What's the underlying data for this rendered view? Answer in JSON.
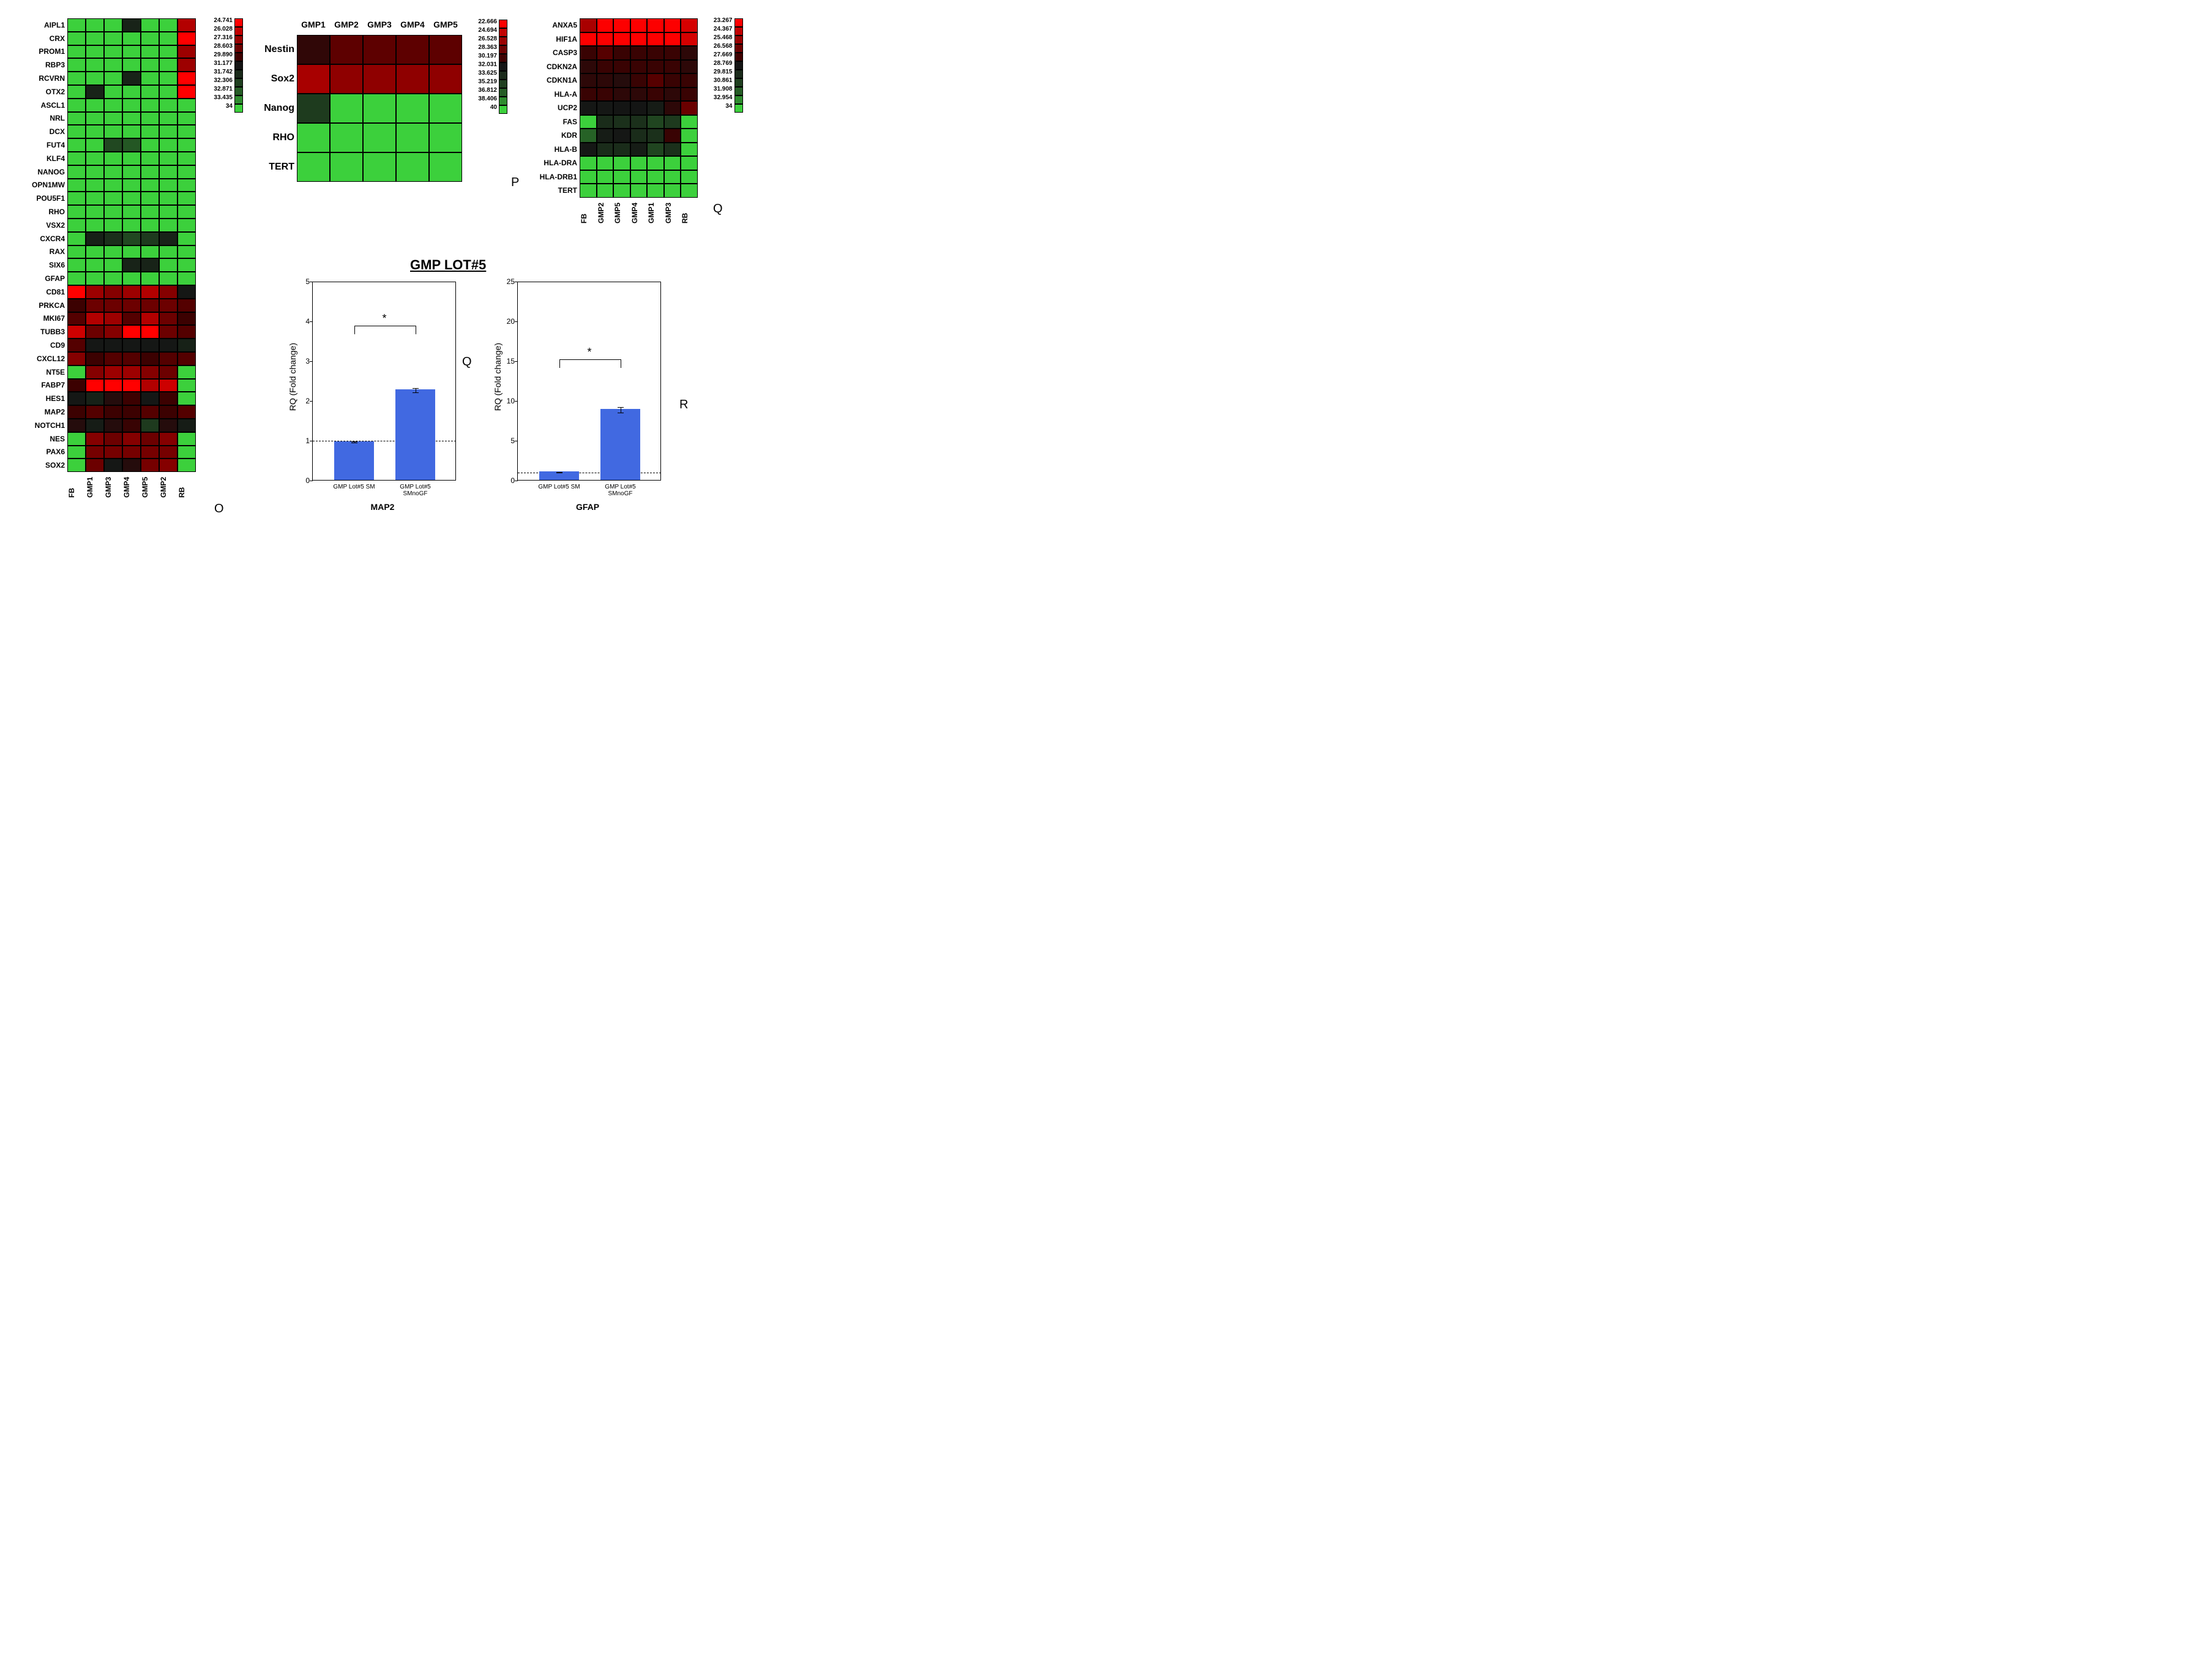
{
  "global": {
    "background_color": "#ffffff",
    "cell_border_color": "#000000",
    "font_family": "Arial"
  },
  "panel_letters": {
    "O": "O",
    "P": "P",
    "Q": "Q",
    "R": "R"
  },
  "heatmap_O": {
    "type": "heatmap",
    "panel_letter": "O",
    "row_label_fontsize": 12,
    "col_label_fontsize": 12,
    "rows": [
      "AIPL1",
      "CRX",
      "PROM1",
      "RBP3",
      "RCVRN",
      "OTX2",
      "ASCL1",
      "NRL",
      "DCX",
      "FUT4",
      "KLF4",
      "NANOG",
      "OPN1MW",
      "POU5F1",
      "RHO",
      "VSX2",
      "CXCR4",
      "RAX",
      "SIX6",
      "GFAP",
      "CD81",
      "PRKCA",
      "MKI67",
      "TUBB3",
      "CD9",
      "CXCL12",
      "NT5E",
      "FABP7",
      "HES1",
      "MAP2",
      "NOTCH1",
      "NES",
      "PAX6",
      "SOX2"
    ],
    "cols": [
      "FB",
      "GMP1",
      "GMP3",
      "GMP4",
      "GMP5",
      "GMP2",
      "RB"
    ],
    "legend_ticks": [
      "24.741",
      "26.028",
      "27.316",
      "28.603",
      "29.890",
      "31.177",
      "31.742",
      "32.306",
      "32.871",
      "33.435",
      "34"
    ],
    "legend_palette": [
      "#ff0000",
      "#c20000",
      "#990000",
      "#6b0000",
      "#3f0000",
      "#141414",
      "#1a2a1a",
      "#1f3f1f",
      "#255c25",
      "#2e8b2e",
      "#3cd03c"
    ],
    "data": [
      [
        34,
        34,
        34,
        30,
        34,
        34,
        26
      ],
      [
        34,
        34,
        34,
        34,
        34,
        34,
        24.7
      ],
      [
        34,
        34,
        34,
        34,
        34,
        34,
        26.5
      ],
      [
        34,
        34,
        34,
        34,
        34,
        34,
        26.5
      ],
      [
        34,
        34,
        34,
        30,
        34,
        34,
        24.7
      ],
      [
        34,
        30,
        34,
        34,
        34,
        34,
        24.7
      ],
      [
        34,
        34,
        34,
        34,
        34,
        34,
        34
      ],
      [
        34,
        34,
        34,
        34,
        34,
        34,
        34
      ],
      [
        34,
        34,
        34,
        34,
        34,
        34,
        34
      ],
      [
        34,
        34,
        31.5,
        32,
        34,
        34,
        34
      ],
      [
        34,
        34,
        34,
        34,
        34,
        34,
        34
      ],
      [
        34,
        34,
        34,
        34,
        34,
        34,
        34
      ],
      [
        34,
        34,
        34,
        34,
        34,
        34,
        34
      ],
      [
        34,
        34,
        34,
        34,
        34,
        34,
        34
      ],
      [
        34,
        34,
        34,
        34,
        34,
        34,
        34
      ],
      [
        34,
        34,
        34,
        34,
        34,
        34,
        34
      ],
      [
        34,
        29.9,
        30.5,
        31.5,
        31,
        30,
        34
      ],
      [
        34,
        34,
        34,
        34,
        34,
        34,
        34
      ],
      [
        34,
        34,
        34,
        30,
        30,
        34,
        34
      ],
      [
        34,
        34,
        34,
        34,
        34,
        34,
        34
      ],
      [
        24.7,
        26.5,
        27,
        26.5,
        26,
        27,
        29.5
      ],
      [
        28.5,
        27.5,
        27.5,
        27.5,
        27.5,
        27.5,
        28
      ],
      [
        28,
        26,
        26.5,
        28,
        26,
        27.5,
        28.5
      ],
      [
        25.5,
        27.5,
        27,
        24.7,
        24.7,
        27.5,
        28
      ],
      [
        28,
        29.5,
        29.5,
        29.5,
        29.5,
        29.5,
        29.9
      ],
      [
        27,
        28.5,
        28,
        28,
        28.5,
        28,
        28
      ],
      [
        34,
        27,
        26.5,
        26.5,
        27,
        27.5,
        34
      ],
      [
        28.5,
        24.7,
        24.7,
        24.7,
        26,
        25.5,
        34
      ],
      [
        29.5,
        29.9,
        29,
        28.5,
        29.5,
        28.5,
        34
      ],
      [
        28.5,
        28,
        28.5,
        28.5,
        28,
        28.5,
        28
      ],
      [
        29,
        29.7,
        29,
        28.6,
        31,
        29,
        29.7
      ],
      [
        34,
        27,
        27.5,
        27,
        27.5,
        27,
        34
      ],
      [
        34,
        27.3,
        27.3,
        27.3,
        27.3,
        27.3,
        34
      ],
      [
        34,
        27.5,
        29.5,
        29,
        27.3,
        27,
        34
      ]
    ],
    "vmin": 24.741,
    "vmax": 34,
    "palette": [
      "#ff0000",
      "#c20000",
      "#990000",
      "#6b0000",
      "#3f0000",
      "#141414",
      "#1a2a1a",
      "#1f3f1f",
      "#255c25",
      "#2e8b2e",
      "#3cd03c"
    ]
  },
  "heatmap_P": {
    "type": "heatmap",
    "panel_letter": "P",
    "row_label_fontsize": 16,
    "col_label_fontsize": 14,
    "rows": [
      "Nestin",
      "Sox2",
      "Nanog",
      "RHO",
      "TERT"
    ],
    "cols": [
      "GMP1",
      "GMP2",
      "GMP3",
      "GMP4",
      "GMP5"
    ],
    "legend_ticks": [
      "22.666",
      "24.694",
      "26.528",
      "28.363",
      "30.197",
      "32.031",
      "33.625",
      "35.219",
      "36.812",
      "38.406",
      "40"
    ],
    "legend_palette": [
      "#ff0000",
      "#c20000",
      "#990000",
      "#6b0000",
      "#3f0000",
      "#141414",
      "#1a2a1a",
      "#1f3f1f",
      "#255c25",
      "#2e8b2e",
      "#3cd03c"
    ],
    "data": [
      [
        30.2,
        28.4,
        28.4,
        28.4,
        28.4
      ],
      [
        25.5,
        26.5,
        26.5,
        26.5,
        26.5
      ],
      [
        34.5,
        40,
        40,
        40,
        40
      ],
      [
        40,
        40,
        40,
        40,
        40
      ],
      [
        40,
        40,
        40,
        40,
        40
      ]
    ],
    "vmin": 22.666,
    "vmax": 40,
    "palette": [
      "#ff0000",
      "#c20000",
      "#990000",
      "#6b0000",
      "#3f0000",
      "#141414",
      "#1a2a1a",
      "#1f3f1f",
      "#255c25",
      "#2e8b2e",
      "#3cd03c"
    ]
  },
  "heatmap_Q": {
    "type": "heatmap",
    "panel_letter": "Q",
    "row_label_fontsize": 12,
    "col_label_fontsize": 12,
    "rows": [
      "ANXA5",
      "HIF1A",
      "CASP3",
      "CDKN2A",
      "CDKN1A",
      "HLA-A",
      "UCP2",
      "FAS",
      "KDR",
      "HLA-B",
      "HLA-DRA",
      "HLA-DRB1",
      "TERT"
    ],
    "cols": [
      "FB",
      "GMP2",
      "GMP5",
      "GMP4",
      "GMP1",
      "GMP3",
      "RB"
    ],
    "legend_ticks": [
      "23.267",
      "24.367",
      "25.468",
      "26.568",
      "27.669",
      "28.769",
      "29.815",
      "30.861",
      "31.908",
      "32.954",
      "34"
    ],
    "legend_palette": [
      "#ff0000",
      "#c20000",
      "#990000",
      "#6b0000",
      "#3f0000",
      "#141414",
      "#1a2a1a",
      "#1f3f1f",
      "#255c25",
      "#2e8b2e",
      "#3cd03c"
    ],
    "data": [
      [
        25,
        23.3,
        23.3,
        23.3,
        23.3,
        23.3,
        24
      ],
      [
        23.3,
        23.3,
        23.3,
        23.3,
        23.3,
        23.3,
        24
      ],
      [
        27.7,
        27,
        27.7,
        27.7,
        27.7,
        27.7,
        28
      ],
      [
        28,
        27.7,
        27.7,
        27.7,
        27.7,
        27.7,
        28
      ],
      [
        28,
        28,
        28.2,
        27.7,
        27,
        27.7,
        27.7
      ],
      [
        27.7,
        27.7,
        28,
        28,
        27.7,
        28,
        27.7
      ],
      [
        28.8,
        28.8,
        28.7,
        28.7,
        29,
        28,
        26.5
      ],
      [
        34,
        29.8,
        30,
        30,
        31,
        30.5,
        34
      ],
      [
        32,
        29,
        28.8,
        29.8,
        30,
        27.7,
        34
      ],
      [
        28.8,
        29.8,
        29.8,
        29,
        31,
        30,
        34
      ],
      [
        34,
        34,
        34,
        34,
        34,
        34,
        34
      ],
      [
        34,
        34,
        34,
        34,
        34,
        34,
        34
      ],
      [
        34,
        34,
        34,
        34,
        34,
        34,
        34
      ]
    ],
    "vmin": 23.267,
    "vmax": 34,
    "palette": [
      "#ff0000",
      "#c20000",
      "#990000",
      "#6b0000",
      "#3f0000",
      "#141414",
      "#1a2a1a",
      "#1f3f1f",
      "#255c25",
      "#2e8b2e",
      "#3cd03c"
    ]
  },
  "bar_group": {
    "title": "GMP LOT#5",
    "ylabel": "RQ (Fold change)",
    "bar_color": "#4169E1",
    "axis_color": "#000000",
    "ytick_fontsize": 12,
    "ref_line": 1.0,
    "charts": [
      {
        "panel_letter": "Q",
        "xlabel": "MAP2",
        "categories": [
          "GMP Lot#5 SM",
          "GMP Lot#5 SMnoGF"
        ],
        "values": [
          0.97,
          2.27
        ],
        "errors": [
          0.02,
          0.05
        ],
        "ylim": [
          0,
          5
        ],
        "ytick_step": 1,
        "sig_from": 0,
        "sig_to": 1,
        "sig_y": 3.9,
        "sig_label": "*"
      },
      {
        "panel_letter": "R",
        "xlabel": "GFAP",
        "categories": [
          "GMP Lot#5 SM",
          "GMP Lot#5 SMnoGF"
        ],
        "values": [
          1.04,
          8.9
        ],
        "errors": [
          0.04,
          0.35
        ],
        "ylim": [
          0,
          25
        ],
        "ytick_step": 5,
        "sig_from": 0,
        "sig_to": 1,
        "sig_y": 15.2,
        "sig_label": "*"
      }
    ]
  }
}
